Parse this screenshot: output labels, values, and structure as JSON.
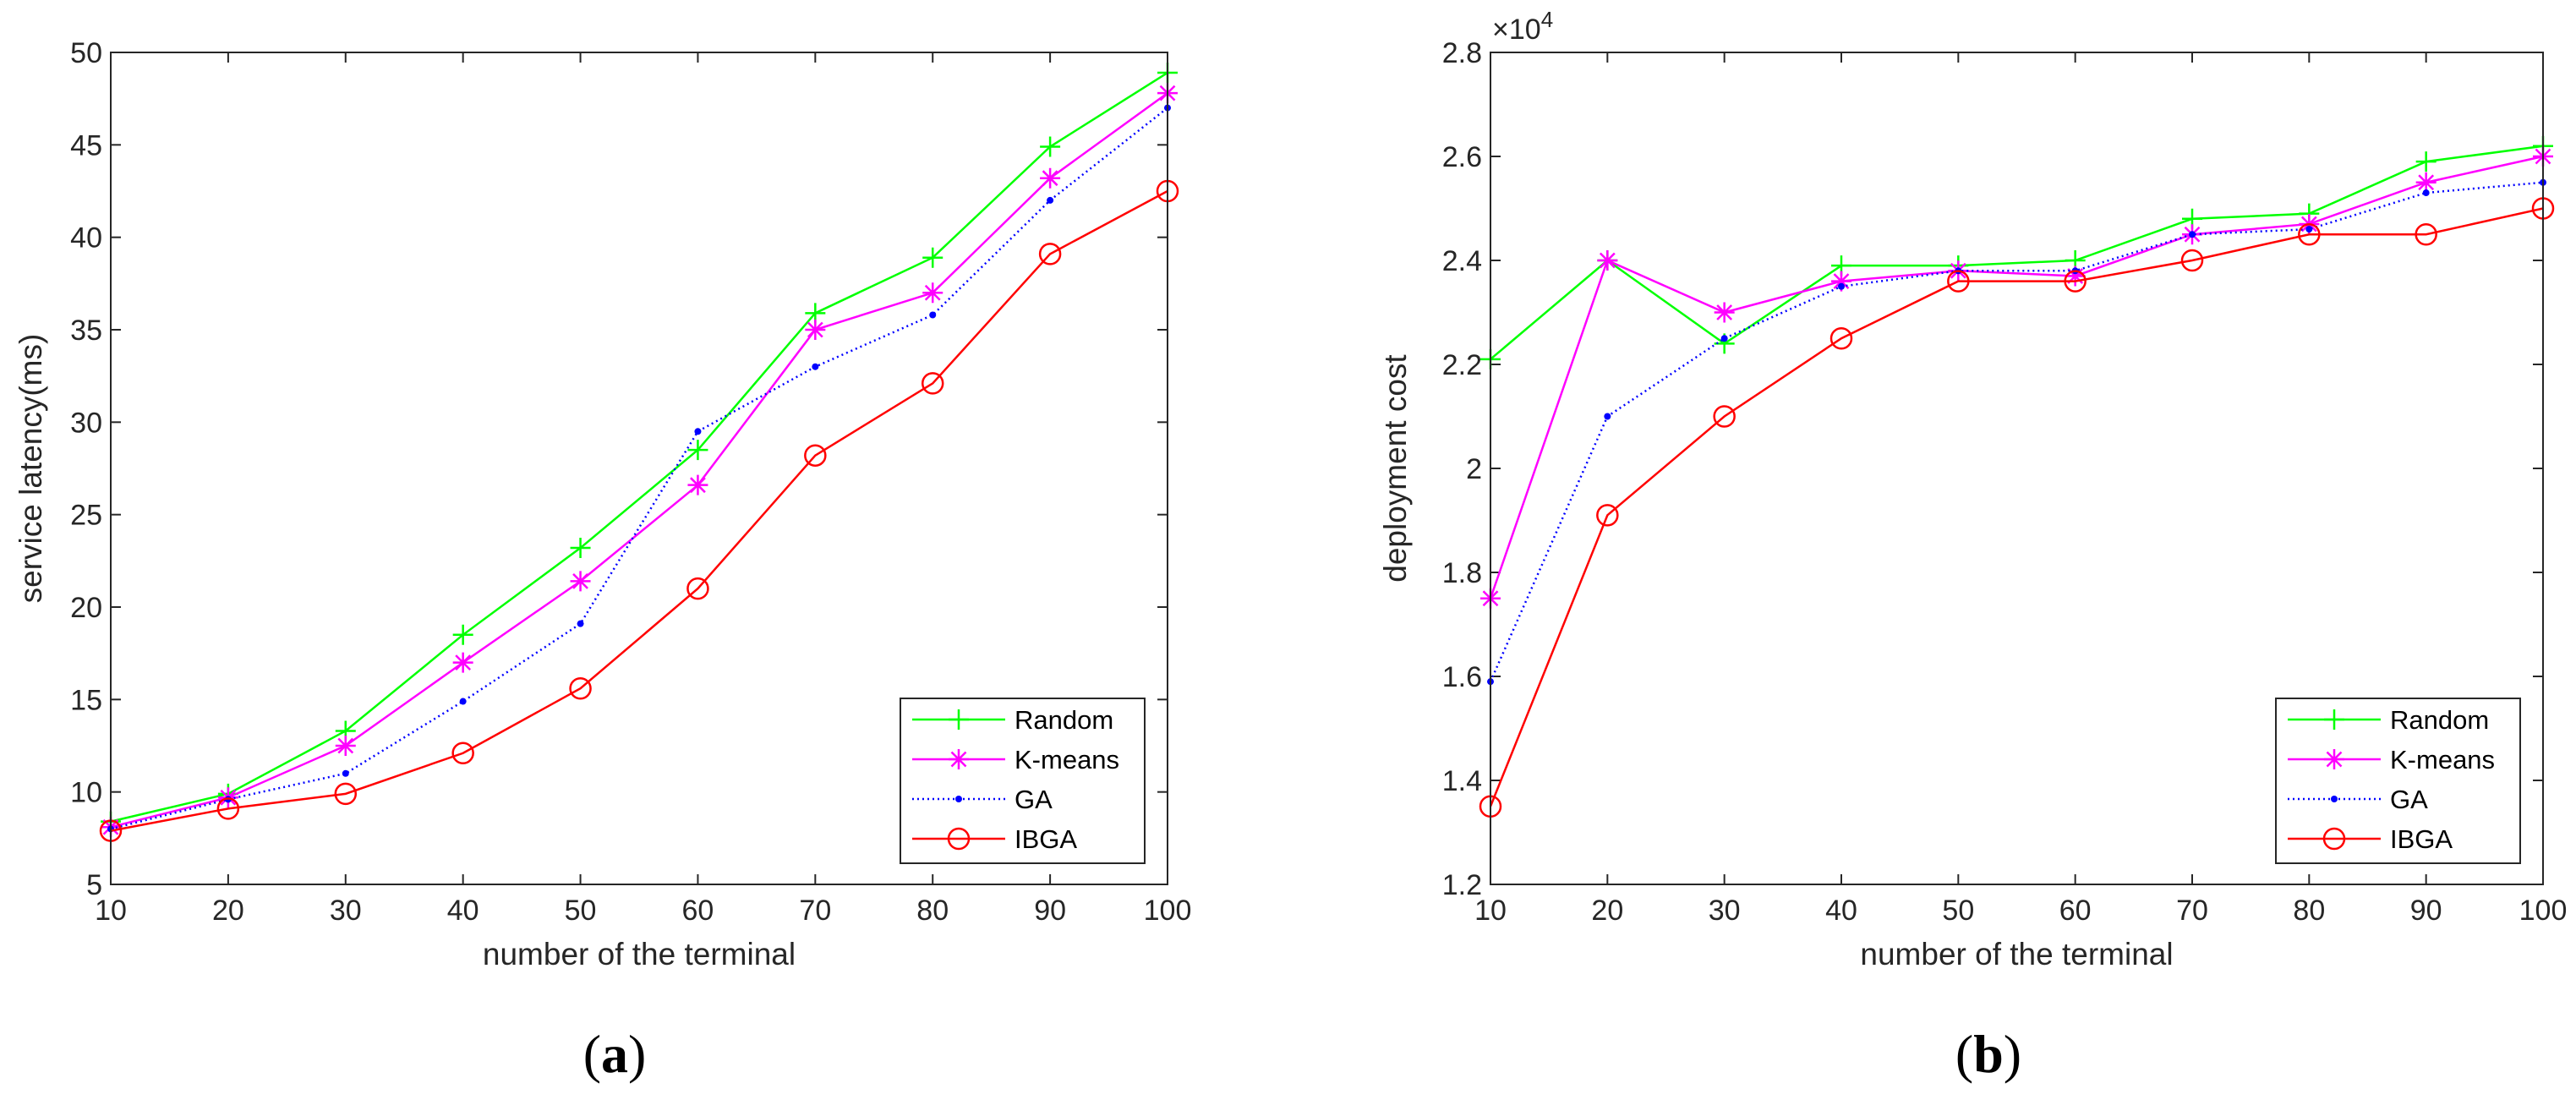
{
  "chart_data": [
    {
      "type": "line",
      "panel_label": "a",
      "xlabel": "number of the terminal",
      "ylabel": "service latency(ms)",
      "xlim": [
        10,
        100
      ],
      "ylim": [
        5,
        50
      ],
      "xticks": [
        10,
        20,
        30,
        40,
        50,
        60,
        70,
        80,
        90,
        100
      ],
      "yticks": [
        5,
        10,
        15,
        20,
        25,
        30,
        35,
        40,
        45,
        50
      ],
      "x": [
        10,
        20,
        30,
        40,
        50,
        60,
        70,
        80,
        90,
        100
      ],
      "legend_position": "bottom-right",
      "series": [
        {
          "name": "Random",
          "color": "#00ff00",
          "marker": "plus",
          "line": "solid",
          "values": [
            8.4,
            9.9,
            13.3,
            18.5,
            23.2,
            28.5,
            35.9,
            38.9,
            44.9,
            48.9
          ]
        },
        {
          "name": "K-means",
          "color": "#ff00ff",
          "marker": "star",
          "line": "solid",
          "values": [
            8.1,
            9.7,
            12.5,
            17.0,
            21.4,
            26.6,
            35.0,
            37.0,
            43.2,
            47.8
          ]
        },
        {
          "name": "GA",
          "color": "#0000ff",
          "marker": "dot",
          "line": "dotted",
          "values": [
            8.0,
            9.6,
            11.0,
            14.9,
            19.1,
            29.5,
            33.0,
            35.8,
            42.0,
            47.0
          ]
        },
        {
          "name": "IBGA",
          "color": "#ff0000",
          "marker": "circle",
          "line": "solid",
          "values": [
            7.9,
            9.1,
            9.9,
            12.1,
            15.6,
            21.0,
            28.2,
            32.1,
            39.1,
            42.5
          ]
        }
      ]
    },
    {
      "type": "line",
      "panel_label": "b",
      "xlabel": "number of the terminal",
      "ylabel": "deployment cost",
      "exponent_label": "×10",
      "exponent_power": "4",
      "xlim": [
        10,
        100
      ],
      "ylim": [
        1.2,
        2.8
      ],
      "xticks": [
        10,
        20,
        30,
        40,
        50,
        60,
        70,
        80,
        90,
        100
      ],
      "yticks": [
        1.2,
        1.4,
        1.6,
        1.8,
        2,
        2.2,
        2.4,
        2.6,
        2.8
      ],
      "x": [
        10,
        20,
        30,
        40,
        50,
        60,
        70,
        80,
        90,
        100
      ],
      "legend_position": "bottom-right",
      "series": [
        {
          "name": "Random",
          "color": "#00ff00",
          "marker": "plus",
          "line": "solid",
          "values": [
            2.21,
            2.4,
            2.24,
            2.39,
            2.39,
            2.4,
            2.48,
            2.49,
            2.59,
            2.62
          ]
        },
        {
          "name": "K-means",
          "color": "#ff00ff",
          "marker": "star",
          "line": "solid",
          "values": [
            1.75,
            2.4,
            2.3,
            2.36,
            2.38,
            2.37,
            2.45,
            2.47,
            2.55,
            2.6
          ]
        },
        {
          "name": "GA",
          "color": "#0000ff",
          "marker": "dot",
          "line": "dotted",
          "values": [
            1.59,
            2.1,
            2.25,
            2.35,
            2.38,
            2.38,
            2.45,
            2.46,
            2.53,
            2.55
          ]
        },
        {
          "name": "IBGA",
          "color": "#ff0000",
          "marker": "circle",
          "line": "solid",
          "values": [
            1.35,
            1.91,
            2.1,
            2.25,
            2.36,
            2.36,
            2.4,
            2.45,
            2.45,
            2.5
          ]
        }
      ]
    }
  ]
}
